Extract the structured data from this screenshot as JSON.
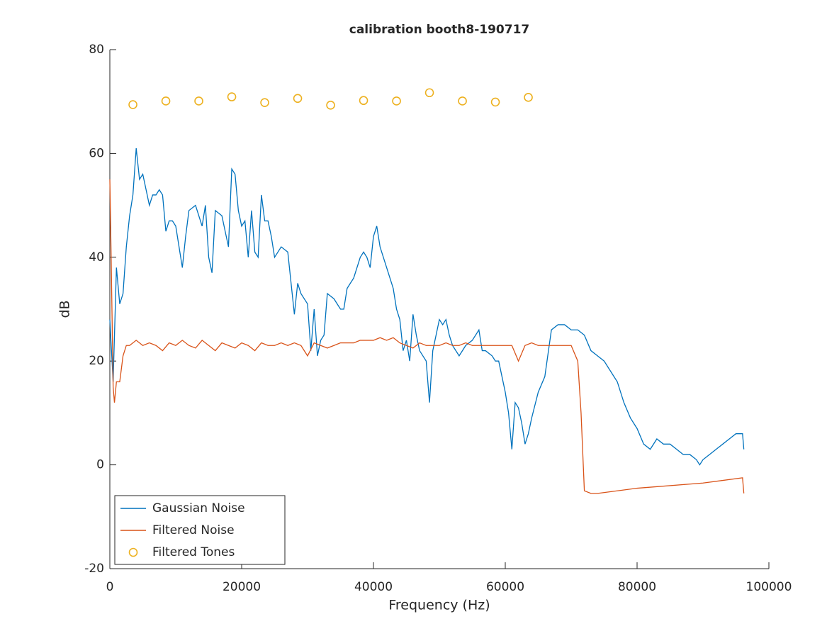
{
  "chart_data": {
    "type": "line",
    "title": "calibration booth8-190717",
    "x_label": "Frequency (Hz)",
    "y_label": "dB",
    "xlim": [
      0,
      100000
    ],
    "xticks": [
      0,
      20000,
      40000,
      60000,
      80000,
      100000
    ],
    "ylim": [
      -20,
      80
    ],
    "yticks": [
      -20,
      0,
      20,
      40,
      60,
      80
    ],
    "legend": "lower left",
    "series": [
      {
        "name": "Gaussian Noise",
        "color": "#0072bd",
        "kind": "line",
        "x": [
          0,
          500,
          1000,
          1500,
          2000,
          2500,
          3000,
          3500,
          4000,
          4500,
          5000,
          5500,
          6000,
          6500,
          7000,
          7500,
          8000,
          8500,
          9000,
          9500,
          10000,
          10500,
          11000,
          11500,
          12000,
          13000,
          14000,
          14500,
          15000,
          15500,
          16000,
          17000,
          17500,
          18000,
          18500,
          19000,
          19500,
          20000,
          20500,
          21000,
          21500,
          22000,
          22500,
          23000,
          23500,
          24000,
          24500,
          25000,
          26000,
          27000,
          28000,
          28500,
          29000,
          30000,
          30500,
          31000,
          31500,
          32000,
          32500,
          33000,
          34000,
          35000,
          35500,
          36000,
          37000,
          38000,
          38500,
          39000,
          39500,
          40000,
          40500,
          41000,
          42000,
          43000,
          43500,
          44000,
          44500,
          45000,
          45500,
          46000,
          46500,
          47000,
          48000,
          48500,
          49000,
          49500,
          50000,
          50500,
          51000,
          51500,
          52000,
          53000,
          54000,
          55000,
          56000,
          56500,
          57000,
          58000,
          58500,
          59000,
          60000,
          60500,
          61000,
          61500,
          62000,
          62500,
          63000,
          63500,
          64000,
          65000,
          66000,
          67000,
          68000,
          69000,
          70000,
          71000,
          72000,
          73000,
          74000,
          75000,
          76000,
          77000,
          78000,
          79000,
          80000,
          81000,
          82000,
          83000,
          84000,
          85000,
          86000,
          87000,
          88000,
          89000,
          89500,
          90000,
          91000,
          92000,
          93000,
          94000,
          95000,
          96000,
          96200
        ],
        "values": [
          28,
          16,
          38,
          31,
          33,
          42,
          48,
          52,
          61,
          55,
          56,
          53,
          50,
          52,
          52,
          53,
          52,
          45,
          47,
          47,
          46,
          42,
          38,
          44,
          49,
          50,
          46,
          50,
          40,
          37,
          49,
          48,
          45,
          42,
          57,
          56,
          49,
          46,
          47,
          40,
          49,
          41,
          40,
          52,
          47,
          47,
          44,
          40,
          42,
          41,
          29,
          35,
          33,
          31,
          22,
          30,
          21,
          24,
          25,
          33,
          32,
          30,
          30,
          34,
          36,
          40,
          41,
          40,
          38,
          44,
          46,
          42,
          38,
          34,
          30,
          28,
          22,
          24,
          20,
          29,
          25,
          22,
          20,
          12,
          22,
          25,
          28,
          27,
          28,
          25,
          23,
          21,
          23,
          24,
          26,
          22,
          22,
          21,
          20,
          20,
          14,
          10,
          3,
          12,
          11,
          8,
          4,
          6,
          9,
          14,
          17,
          26,
          27,
          27,
          26,
          26,
          25,
          22,
          21,
          20,
          18,
          16,
          12,
          9,
          7,
          4,
          3,
          5,
          4,
          4,
          3,
          2,
          2,
          1,
          0,
          1,
          2,
          3,
          4,
          5,
          6,
          6,
          3
        ]
      },
      {
        "name": "Filtered Noise",
        "color": "#d95319",
        "kind": "line",
        "x": [
          0,
          200,
          500,
          700,
          1000,
          1500,
          2000,
          2500,
          3000,
          4000,
          5000,
          6000,
          7000,
          8000,
          9000,
          10000,
          11000,
          12000,
          13000,
          14000,
          15000,
          16000,
          17000,
          18000,
          19000,
          20000,
          21000,
          22000,
          23000,
          24000,
          25000,
          26000,
          27000,
          28000,
          29000,
          30000,
          31000,
          32000,
          33000,
          34000,
          35000,
          36000,
          37000,
          38000,
          39000,
          40000,
          41000,
          42000,
          43000,
          44000,
          45000,
          46000,
          47000,
          48000,
          49000,
          50000,
          51000,
          52000,
          53000,
          54000,
          55000,
          56000,
          57000,
          58000,
          59000,
          60000,
          61000,
          62000,
          63000,
          64000,
          65000,
          66000,
          67000,
          68000,
          69000,
          70000,
          71000,
          71500,
          72000,
          73000,
          74000,
          80000,
          90000,
          96000,
          96200
        ],
        "values": [
          55,
          40,
          15,
          12,
          16,
          16,
          21,
          23,
          23,
          24,
          23,
          23.5,
          23,
          22,
          23.5,
          23,
          24,
          23,
          22.5,
          24,
          23,
          22,
          23.5,
          23,
          22.5,
          23.5,
          23,
          22,
          23.5,
          23,
          23,
          23.5,
          23,
          23.5,
          23,
          21,
          23.5,
          23,
          22.5,
          23,
          23.5,
          23.5,
          23.5,
          24,
          24,
          24,
          24.5,
          24,
          24.5,
          23.5,
          23,
          22.5,
          23.5,
          23,
          23,
          23,
          23.5,
          23,
          23,
          23.5,
          23,
          23,
          23,
          23,
          23,
          23,
          23,
          20,
          23,
          23.5,
          23,
          23,
          23,
          23,
          23,
          23,
          20,
          10,
          -5,
          -5.5,
          -5.5,
          -4.5,
          -3.5,
          -2.5,
          -5.5
        ]
      },
      {
        "name": "Filtered Tones",
        "color": "#edb120",
        "kind": "marker",
        "x": [
          3500,
          8500,
          13500,
          18500,
          23500,
          28500,
          33500,
          38500,
          43500,
          48500,
          53500,
          58500,
          63500
        ],
        "values": [
          69.4,
          70.1,
          70.1,
          70.9,
          69.8,
          70.6,
          69.3,
          70.2,
          70.1,
          71.7,
          70.1,
          69.9,
          70.8
        ]
      }
    ]
  }
}
